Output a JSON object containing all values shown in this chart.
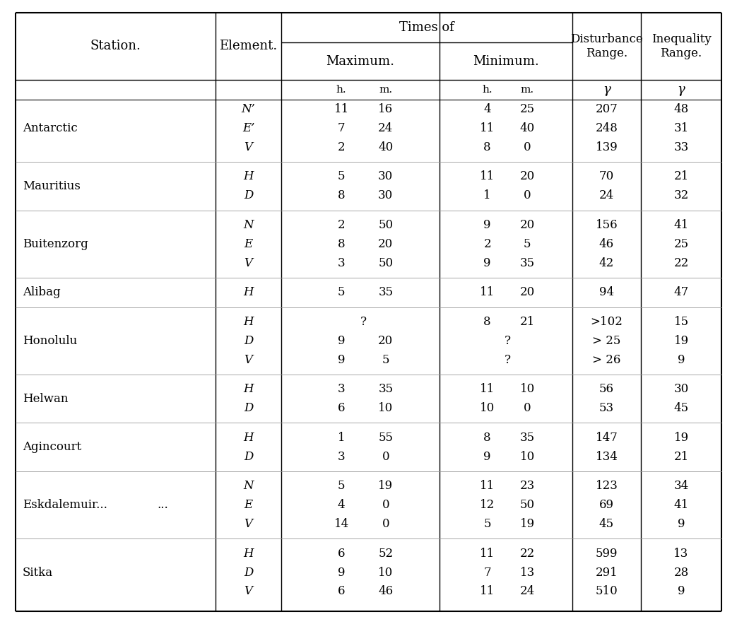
{
  "station_header": "Station.",
  "element_header": "Element.",
  "times_of_header": "Times of",
  "maximum_header": "Maximum.",
  "minimum_header": "Minimum.",
  "disturbance_header": "Disturbance\nRange.",
  "inequality_header": "Inequality\nRange.",
  "rows": [
    {
      "station": "Antarctic",
      "elements": [
        "N’",
        "E’",
        "V"
      ],
      "max_h": [
        "11",
        "7",
        "2"
      ],
      "max_m": [
        "16",
        "24",
        "40"
      ],
      "min_h": [
        "4",
        "11",
        "8"
      ],
      "min_m": [
        "25",
        "40",
        "0"
      ],
      "dist": [
        "207",
        "248",
        "139"
      ],
      "ineq": [
        "48",
        "31",
        "33"
      ]
    },
    {
      "station": "Mauritius",
      "elements": [
        "H",
        "D"
      ],
      "max_h": [
        "5",
        "8"
      ],
      "max_m": [
        "30",
        "30"
      ],
      "min_h": [
        "11",
        "1"
      ],
      "min_m": [
        "20",
        "0"
      ],
      "dist": [
        "70",
        "24"
      ],
      "ineq": [
        "21",
        "32"
      ]
    },
    {
      "station": "Buitenzorg",
      "elements": [
        "N",
        "E",
        "V"
      ],
      "max_h": [
        "2",
        "8",
        "3"
      ],
      "max_m": [
        "50",
        "20",
        "50"
      ],
      "min_h": [
        "9",
        "2",
        "9"
      ],
      "min_m": [
        "20",
        "5",
        "35"
      ],
      "dist": [
        "156",
        "46",
        "42"
      ],
      "ineq": [
        "41",
        "25",
        "22"
      ]
    },
    {
      "station": "Alibag",
      "elements": [
        "H"
      ],
      "max_h": [
        "5"
      ],
      "max_m": [
        "35"
      ],
      "min_h": [
        "11"
      ],
      "min_m": [
        "20"
      ],
      "dist": [
        "94"
      ],
      "ineq": [
        "47"
      ]
    },
    {
      "station": "Honolulu",
      "elements": [
        "H",
        "D",
        "V"
      ],
      "max_h": [
        "",
        "9",
        "9"
      ],
      "max_m": [
        "?",
        "20",
        "5"
      ],
      "min_h": [
        "8",
        "",
        ""
      ],
      "min_m": [
        "21",
        "?",
        "?"
      ],
      "dist": [
        ">102",
        "> 25",
        "> 26"
      ],
      "ineq": [
        "15",
        "19",
        "9"
      ]
    },
    {
      "station": "Helwan",
      "elements": [
        "H",
        "D"
      ],
      "max_h": [
        "3",
        "6"
      ],
      "max_m": [
        "35",
        "10"
      ],
      "min_h": [
        "11",
        "10"
      ],
      "min_m": [
        "10",
        "0"
      ],
      "dist": [
        "56",
        "53"
      ],
      "ineq": [
        "30",
        "45"
      ]
    },
    {
      "station": "Agincourt",
      "elements": [
        "H",
        "D"
      ],
      "max_h": [
        "1",
        "3"
      ],
      "max_m": [
        "55",
        "0"
      ],
      "min_h": [
        "8",
        "9"
      ],
      "min_m": [
        "35",
        "10"
      ],
      "dist": [
        "147",
        "134"
      ],
      "ineq": [
        "19",
        "21"
      ]
    },
    {
      "station": "Eskdalemuir...",
      "elements": [
        "N",
        "E",
        "V"
      ],
      "max_h": [
        "5",
        "4",
        "14"
      ],
      "max_m": [
        "19",
        "0",
        "0"
      ],
      "min_h": [
        "11",
        "12",
        "5"
      ],
      "min_m": [
        "23",
        "50",
        "19"
      ],
      "dist": [
        "123",
        "69",
        "45"
      ],
      "ineq": [
        "34",
        "41",
        "9"
      ]
    },
    {
      "station": "Sitka",
      "elements": [
        "H",
        "D",
        "V"
      ],
      "max_h": [
        "6",
        "9",
        "6"
      ],
      "max_m": [
        "52",
        "10",
        "46"
      ],
      "min_h": [
        "11",
        "7",
        "11"
      ],
      "min_m": [
        "22",
        "13",
        "24"
      ],
      "dist": [
        "599",
        "291",
        "510"
      ],
      "ineq": [
        "13",
        "28",
        "9"
      ]
    }
  ],
  "bg_color": "#ffffff",
  "text_color": "#000000",
  "font_family": "DejaVu Serif",
  "border_lw": 1.5,
  "inner_lw": 1.0,
  "figw": 10.43,
  "figh": 8.83,
  "dpi": 100
}
